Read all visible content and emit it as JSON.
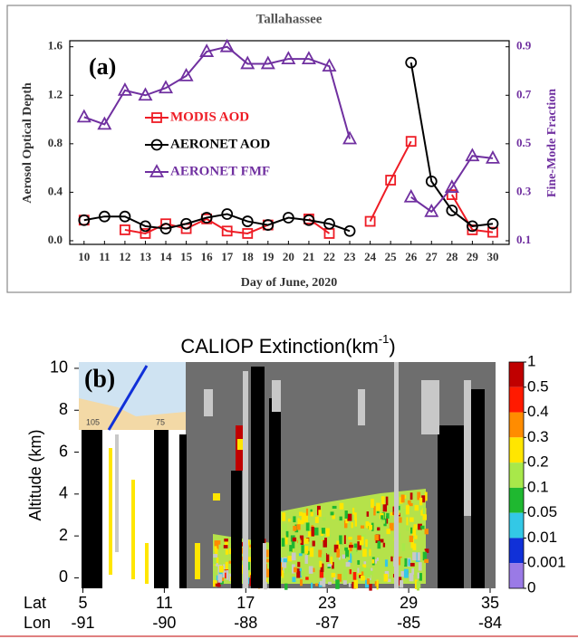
{
  "chart_data": [
    {
      "type": "line",
      "title": "Tallahassee",
      "panel_label": "(a)",
      "x": [
        10,
        11,
        12,
        13,
        14,
        15,
        16,
        17,
        18,
        19,
        20,
        21,
        22,
        23,
        24,
        25,
        26,
        27,
        28,
        29,
        30
      ],
      "xlim": [
        9.3,
        30.8
      ],
      "xticks": [
        10,
        11,
        12,
        13,
        14,
        15,
        16,
        17,
        18,
        19,
        20,
        21,
        22,
        23,
        24,
        25,
        26,
        27,
        28,
        29,
        30
      ],
      "xlabel": "Day of June, 2020",
      "ylabel": "Aerosol Optical Depth",
      "y2label": "Fine-Mode Fraction",
      "ylim": [
        -0.03,
        1.65
      ],
      "yticks": [
        {
          "value": 0,
          "label": "0.0"
        },
        0.4,
        0.8,
        1.2,
        1.6
      ],
      "y2lim": [
        0.085,
        0.925
      ],
      "y2ticks": [
        0.1,
        0.3,
        0.5,
        0.7,
        0.9
      ],
      "legend": "upper left",
      "series": [
        {
          "name": "MODIS AOD",
          "color": "#ee1c25",
          "marker": "square",
          "values": [
            0.17,
            null,
            0.09,
            0.06,
            0.14,
            0.1,
            0.18,
            0.08,
            0.06,
            0.13,
            null,
            0.18,
            0.06,
            null,
            0.16,
            0.5,
            0.82,
            null,
            0.38,
            0.09,
            0.07
          ]
        },
        {
          "name": "AERONET AOD",
          "color": "#000000",
          "marker": "circle",
          "values": [
            0.17,
            0.2,
            0.2,
            0.12,
            0.1,
            0.14,
            0.19,
            0.22,
            0.16,
            0.13,
            0.19,
            0.17,
            0.14,
            0.08,
            null,
            null,
            1.47,
            0.49,
            0.25,
            0.12,
            0.14
          ]
        },
        {
          "name": "AERONET FMF",
          "color": "#7030a0",
          "marker": "triangle",
          "axis": "y2",
          "values": [
            0.61,
            0.58,
            0.72,
            0.7,
            0.73,
            0.78,
            0.88,
            0.9,
            0.83,
            0.83,
            0.85,
            0.85,
            0.82,
            0.52,
            null,
            null,
            0.28,
            0.22,
            0.32,
            0.45,
            0.44
          ]
        }
      ]
    },
    {
      "type": "curtain",
      "title": "CALIOP Extinction(km",
      "title_superscript": "-1",
      "title_suffix": ")",
      "panel_label": "(b)",
      "ylabel": "Altitude (km)",
      "ylim": [
        -0.5,
        10.3
      ],
      "yticks": [
        0,
        2,
        4,
        6,
        8,
        10
      ],
      "xlim": [
        4.7,
        35.4
      ],
      "xlabel": "Lat",
      "xticks": [
        5,
        11,
        17,
        23,
        29,
        35
      ],
      "x2label": "Lon",
      "x2ticks": [
        -91,
        -90,
        -88,
        -87,
        -85,
        -84
      ],
      "inset_labels": [
        "105",
        "75"
      ],
      "colorbar": {
        "ticks": [
          1,
          0.5,
          0.4,
          0.3,
          0.2,
          0.1,
          0.05,
          0.01,
          0.001,
          0
        ],
        "colors": [
          "#c00000",
          "#ff1a00",
          "#ff8c00",
          "#ffe600",
          "#a8e84a",
          "#1fb830",
          "#33c8e6",
          "#1030d8",
          "#9a7ae6"
        ]
      }
    }
  ]
}
